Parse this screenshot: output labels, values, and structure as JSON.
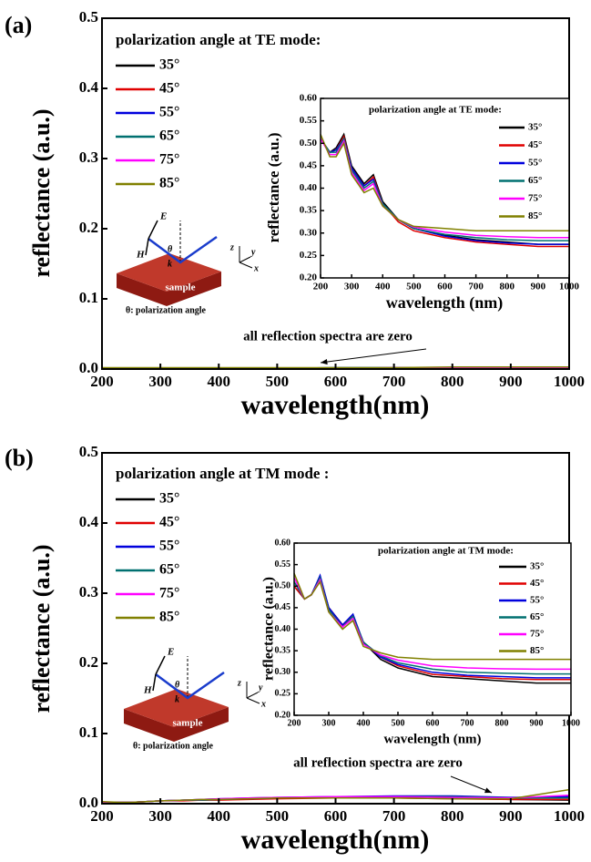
{
  "chart_data": [
    {
      "type": "line",
      "panel_label": "(a)",
      "legend_title": "polarization angle at TE mode:",
      "xlabel": "wavelength(nm)",
      "ylabel": "reflectance (a.u.)",
      "annotation": "all reflection spectra are zero",
      "schematic": [
        "E",
        "H",
        "k",
        "θ",
        "z",
        "y",
        "x",
        "sample",
        "θ: polarization angle"
      ],
      "xlim": [
        200,
        1000
      ],
      "ylim": [
        0,
        0.5
      ],
      "xticks": [
        200,
        300,
        400,
        500,
        600,
        700,
        800,
        900,
        1000
      ],
      "yticks": [
        {
          "value": 0,
          "label": "0.0"
        },
        0.1,
        0.2,
        0.3,
        0.4,
        0.5
      ],
      "x": [
        200,
        230,
        250,
        275,
        300,
        340,
        370,
        400,
        450,
        500,
        600,
        700,
        800,
        900,
        1000
      ],
      "series": [
        {
          "name": "35°",
          "color": "#000000",
          "values": [
            0.001,
            0.001,
            0.001,
            0.001,
            0.001,
            0.001,
            0.001,
            0.001,
            0.001,
            0.001,
            0.001,
            0.001,
            0.002,
            0.002,
            0.002
          ]
        },
        {
          "name": "45°",
          "color": "#e00000",
          "values": [
            0.001,
            0.001,
            0.001,
            0.001,
            0.001,
            0.001,
            0.001,
            0.001,
            0.001,
            0.001,
            0.001,
            0.002,
            0.002,
            0.002,
            0.002
          ]
        },
        {
          "name": "55°",
          "color": "#0000dd",
          "values": [
            0.001,
            0.001,
            0.001,
            0.001,
            0.001,
            0.001,
            0.001,
            0.001,
            0.001,
            0.001,
            0.002,
            0.002,
            0.002,
            0.003,
            0.003
          ]
        },
        {
          "name": "65°",
          "color": "#007070",
          "values": [
            0.001,
            0.001,
            0.001,
            0.001,
            0.001,
            0.001,
            0.001,
            0.001,
            0.001,
            0.001,
            0.002,
            0.002,
            0.002,
            0.002,
            0.003
          ]
        },
        {
          "name": "75°",
          "color": "#ff00ff",
          "values": [
            0.001,
            0.001,
            0.001,
            0.001,
            0.001,
            0.001,
            0.001,
            0.001,
            0.001,
            0.001,
            0.001,
            0.002,
            0.002,
            0.002,
            0.002
          ]
        },
        {
          "name": "85°",
          "color": "#808000",
          "values": [
            0.002,
            0.002,
            0.002,
            0.002,
            0.002,
            0.002,
            0.002,
            0.002,
            0.002,
            0.002,
            0.002,
            0.002,
            0.003,
            0.003,
            0.003
          ]
        }
      ]
    },
    {
      "type": "line",
      "legend_title": "polarization angle at TE mode:",
      "xlabel": "wavelength (nm)",
      "ylabel": "reflectance (a.u.)",
      "xlim": [
        200,
        1000
      ],
      "ylim": [
        0.2,
        0.6
      ],
      "xticks": [
        200,
        300,
        400,
        500,
        600,
        700,
        800,
        900,
        1000
      ],
      "yticks": [
        {
          "value": 0.2,
          "label": "0.20"
        },
        0.25,
        {
          "value": 0.3,
          "label": "0.30"
        },
        0.35,
        {
          "value": 0.4,
          "label": "0.40"
        },
        0.45,
        {
          "value": 0.5,
          "label": "0.50"
        },
        0.55,
        {
          "value": 0.6,
          "label": "0.60"
        }
      ],
      "x": [
        200,
        230,
        250,
        275,
        300,
        340,
        370,
        400,
        450,
        500,
        600,
        700,
        800,
        900,
        1000
      ],
      "series": [
        {
          "name": "35°",
          "color": "#000000",
          "values": [
            0.51,
            0.48,
            0.49,
            0.52,
            0.45,
            0.41,
            0.43,
            0.37,
            0.33,
            0.31,
            0.295,
            0.285,
            0.28,
            0.275,
            0.275
          ]
        },
        {
          "name": "45°",
          "color": "#e00000",
          "values": [
            0.51,
            0.48,
            0.485,
            0.515,
            0.445,
            0.405,
            0.425,
            0.365,
            0.325,
            0.305,
            0.29,
            0.28,
            0.275,
            0.27,
            0.27
          ]
        },
        {
          "name": "55°",
          "color": "#0000dd",
          "values": [
            0.51,
            0.48,
            0.485,
            0.51,
            0.445,
            0.405,
            0.42,
            0.365,
            0.33,
            0.31,
            0.293,
            0.283,
            0.278,
            0.275,
            0.275
          ]
        },
        {
          "name": "65°",
          "color": "#007070",
          "values": [
            0.51,
            0.48,
            0.48,
            0.51,
            0.44,
            0.4,
            0.415,
            0.365,
            0.33,
            0.31,
            0.297,
            0.29,
            0.285,
            0.283,
            0.283
          ]
        },
        {
          "name": "75°",
          "color": "#ff00ff",
          "values": [
            0.51,
            0.475,
            0.475,
            0.505,
            0.435,
            0.395,
            0.41,
            0.36,
            0.33,
            0.313,
            0.302,
            0.295,
            0.292,
            0.29,
            0.29
          ]
        },
        {
          "name": "85°",
          "color": "#808000",
          "values": [
            0.52,
            0.47,
            0.47,
            0.5,
            0.43,
            0.39,
            0.4,
            0.36,
            0.33,
            0.315,
            0.31,
            0.305,
            0.305,
            0.305,
            0.305
          ]
        }
      ]
    },
    {
      "type": "line",
      "panel_label": "(b)",
      "legend_title": "polarization angle at TM mode :",
      "xlabel": "wavelength(nm)",
      "ylabel": "reflectance (a.u.)",
      "annotation": "all reflection spectra are zero",
      "schematic": [
        "E",
        "H",
        "k",
        "θ",
        "z",
        "y",
        "x",
        "sample",
        "θ: polarization angle"
      ],
      "xlim": [
        200,
        1000
      ],
      "ylim": [
        0,
        0.5
      ],
      "xticks": [
        200,
        300,
        400,
        500,
        600,
        700,
        800,
        900,
        1000
      ],
      "yticks": [
        {
          "value": 0,
          "label": "0.0"
        },
        0.1,
        0.2,
        0.3,
        0.4,
        0.5
      ],
      "x": [
        200,
        230,
        250,
        275,
        300,
        340,
        370,
        400,
        450,
        500,
        600,
        700,
        800,
        900,
        1000
      ],
      "series": [
        {
          "name": "35°",
          "color": "#000000",
          "values": [
            0.002,
            0.002,
            0.002,
            0.003,
            0.004,
            0.005,
            0.005,
            0.006,
            0.007,
            0.008,
            0.009,
            0.009,
            0.008,
            0.006,
            0.005
          ]
        },
        {
          "name": "45°",
          "color": "#e00000",
          "values": [
            0.002,
            0.002,
            0.002,
            0.003,
            0.004,
            0.004,
            0.005,
            0.005,
            0.006,
            0.007,
            0.008,
            0.008,
            0.007,
            0.006,
            0.006
          ]
        },
        {
          "name": "55°",
          "color": "#0000dd",
          "values": [
            0.002,
            0.002,
            0.002,
            0.003,
            0.004,
            0.005,
            0.006,
            0.007,
            0.008,
            0.009,
            0.01,
            0.011,
            0.011,
            0.009,
            0.01
          ]
        },
        {
          "name": "65°",
          "color": "#007070",
          "values": [
            0.002,
            0.002,
            0.002,
            0.003,
            0.004,
            0.005,
            0.005,
            0.006,
            0.007,
            0.008,
            0.009,
            0.01,
            0.01,
            0.008,
            0.008
          ]
        },
        {
          "name": "75°",
          "color": "#ff00ff",
          "values": [
            0.002,
            0.002,
            0.002,
            0.003,
            0.004,
            0.005,
            0.006,
            0.007,
            0.008,
            0.009,
            0.01,
            0.01,
            0.009,
            0.008,
            0.012
          ]
        },
        {
          "name": "85°",
          "color": "#808000",
          "values": [
            0.003,
            0.002,
            0.002,
            0.003,
            0.004,
            0.005,
            0.006,
            0.006,
            0.007,
            0.008,
            0.008,
            0.008,
            0.007,
            0.007,
            0.02
          ]
        }
      ]
    },
    {
      "type": "line",
      "legend_title": "polarization angle at TM mode:",
      "xlabel": "wavelength (nm)",
      "ylabel": "reflectance (a.u.)",
      "xlim": [
        200,
        1000
      ],
      "ylim": [
        0.2,
        0.6
      ],
      "xticks": [
        200,
        300,
        400,
        500,
        600,
        700,
        800,
        900,
        1000
      ],
      "yticks": [
        {
          "value": 0.2,
          "label": "0.20"
        },
        0.25,
        {
          "value": 0.3,
          "label": "0.30"
        },
        0.35,
        {
          "value": 0.4,
          "label": "0.40"
        },
        0.45,
        {
          "value": 0.5,
          "label": "0.50"
        },
        0.55,
        {
          "value": 0.6,
          "label": "0.60"
        }
      ],
      "x": [
        200,
        230,
        250,
        275,
        300,
        340,
        370,
        400,
        450,
        500,
        600,
        700,
        800,
        900,
        1000
      ],
      "series": [
        {
          "name": "35°",
          "color": "#000000",
          "values": [
            0.5,
            0.47,
            0.48,
            0.52,
            0.45,
            0.41,
            0.43,
            0.37,
            0.33,
            0.31,
            0.29,
            0.285,
            0.28,
            0.275,
            0.275
          ]
        },
        {
          "name": "45°",
          "color": "#e00000",
          "values": [
            0.5,
            0.47,
            0.48,
            0.52,
            0.45,
            0.41,
            0.43,
            0.37,
            0.335,
            0.315,
            0.295,
            0.29,
            0.285,
            0.283,
            0.283
          ]
        },
        {
          "name": "55°",
          "color": "#0000dd",
          "values": [
            0.51,
            0.47,
            0.48,
            0.525,
            0.45,
            0.41,
            0.435,
            0.37,
            0.335,
            0.318,
            0.3,
            0.293,
            0.29,
            0.287,
            0.287
          ]
        },
        {
          "name": "65°",
          "color": "#007070",
          "values": [
            0.51,
            0.47,
            0.48,
            0.52,
            0.445,
            0.405,
            0.43,
            0.37,
            0.338,
            0.322,
            0.307,
            0.3,
            0.298,
            0.296,
            0.296
          ]
        },
        {
          "name": "75°",
          "color": "#ff00ff",
          "values": [
            0.52,
            0.47,
            0.48,
            0.515,
            0.44,
            0.405,
            0.425,
            0.365,
            0.34,
            0.328,
            0.315,
            0.31,
            0.308,
            0.307,
            0.307
          ]
        },
        {
          "name": "85°",
          "color": "#808000",
          "values": [
            0.53,
            0.47,
            0.48,
            0.51,
            0.44,
            0.4,
            0.42,
            0.36,
            0.345,
            0.335,
            0.33,
            0.33,
            0.33,
            0.33,
            0.33
          ]
        }
      ]
    }
  ]
}
